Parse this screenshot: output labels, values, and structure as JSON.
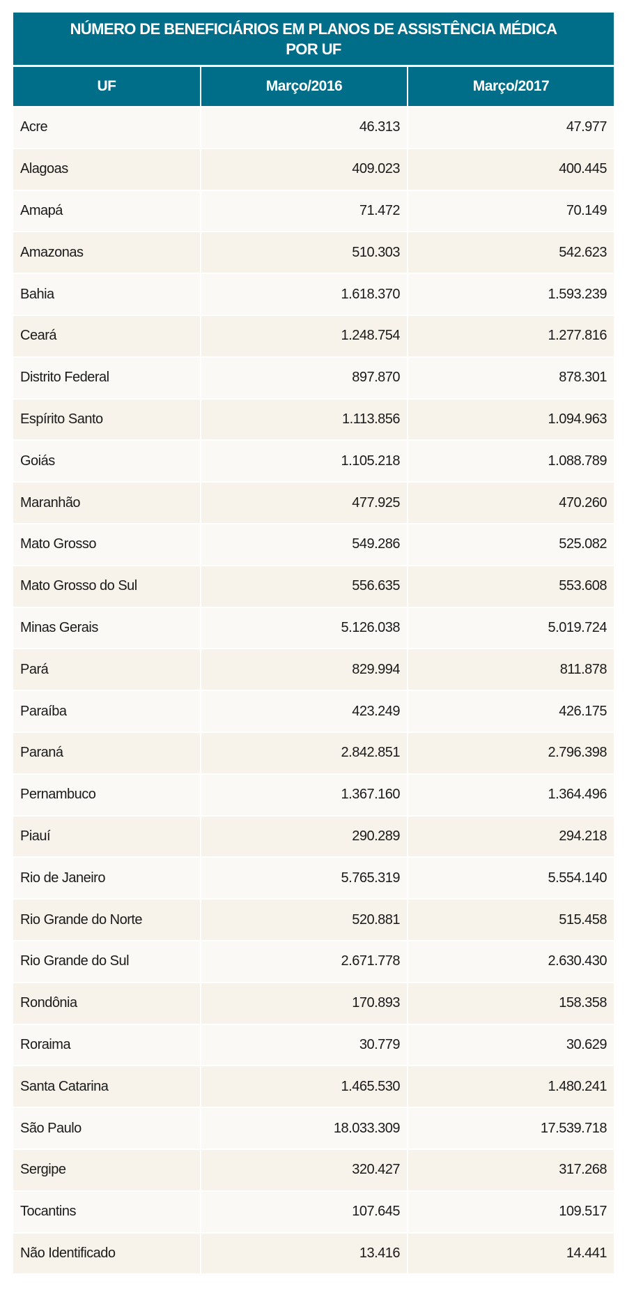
{
  "title": "NÚMERO DE BENEFICIÁRIOS EM PLANOS DE ASSISTÊNCIA MÉDICA\nPOR UF",
  "colors": {
    "header": "#006e88",
    "row_odd": "#fbf9f5",
    "row_even": "#f7f2ea"
  },
  "columns": [
    "UF",
    "Março/2016",
    "Março/2017"
  ],
  "rows": [
    [
      "Acre",
      "46.313",
      "47.977"
    ],
    [
      "Alagoas",
      "409.023",
      "400.445"
    ],
    [
      "Amapá",
      "71.472",
      "70.149"
    ],
    [
      "Amazonas",
      "510.303",
      "542.623"
    ],
    [
      "Bahia",
      "1.618.370",
      "1.593.239"
    ],
    [
      "Ceará",
      "1.248.754",
      "1.277.816"
    ],
    [
      "Distrito Federal",
      "897.870",
      "878.301"
    ],
    [
      "Espírito Santo",
      "1.113.856",
      "1.094.963"
    ],
    [
      "Goiás",
      "1.105.218",
      "1.088.789"
    ],
    [
      "Maranhão",
      "477.925",
      "470.260"
    ],
    [
      "Mato Grosso",
      "549.286",
      "525.082"
    ],
    [
      "Mato Grosso do Sul",
      "556.635",
      "553.608"
    ],
    [
      "Minas Gerais",
      "5.126.038",
      "5.019.724"
    ],
    [
      "Pará",
      "829.994",
      "811.878"
    ],
    [
      "Paraíba",
      "423.249",
      "426.175"
    ],
    [
      "Paraná",
      "2.842.851",
      "2.796.398"
    ],
    [
      "Pernambuco",
      "1.367.160",
      "1.364.496"
    ],
    [
      "Piauí",
      "290.289",
      "294.218"
    ],
    [
      "Rio de Janeiro",
      "5.765.319",
      "5.554.140"
    ],
    [
      "Rio Grande do Norte",
      "520.881",
      "515.458"
    ],
    [
      "Rio Grande do Sul",
      "2.671.778",
      "2.630.430"
    ],
    [
      "Rondônia",
      "170.893",
      "158.358"
    ],
    [
      "Roraima",
      "30.779",
      "30.629"
    ],
    [
      "Santa Catarina",
      "1.465.530",
      "1.480.241"
    ],
    [
      "São Paulo",
      "18.033.309",
      "17.539.718"
    ],
    [
      "Sergipe",
      "320.427",
      "317.268"
    ],
    [
      "Tocantins",
      "107.645",
      "109.517"
    ],
    [
      "Não Identificado",
      "13.416",
      "14.441"
    ]
  ]
}
